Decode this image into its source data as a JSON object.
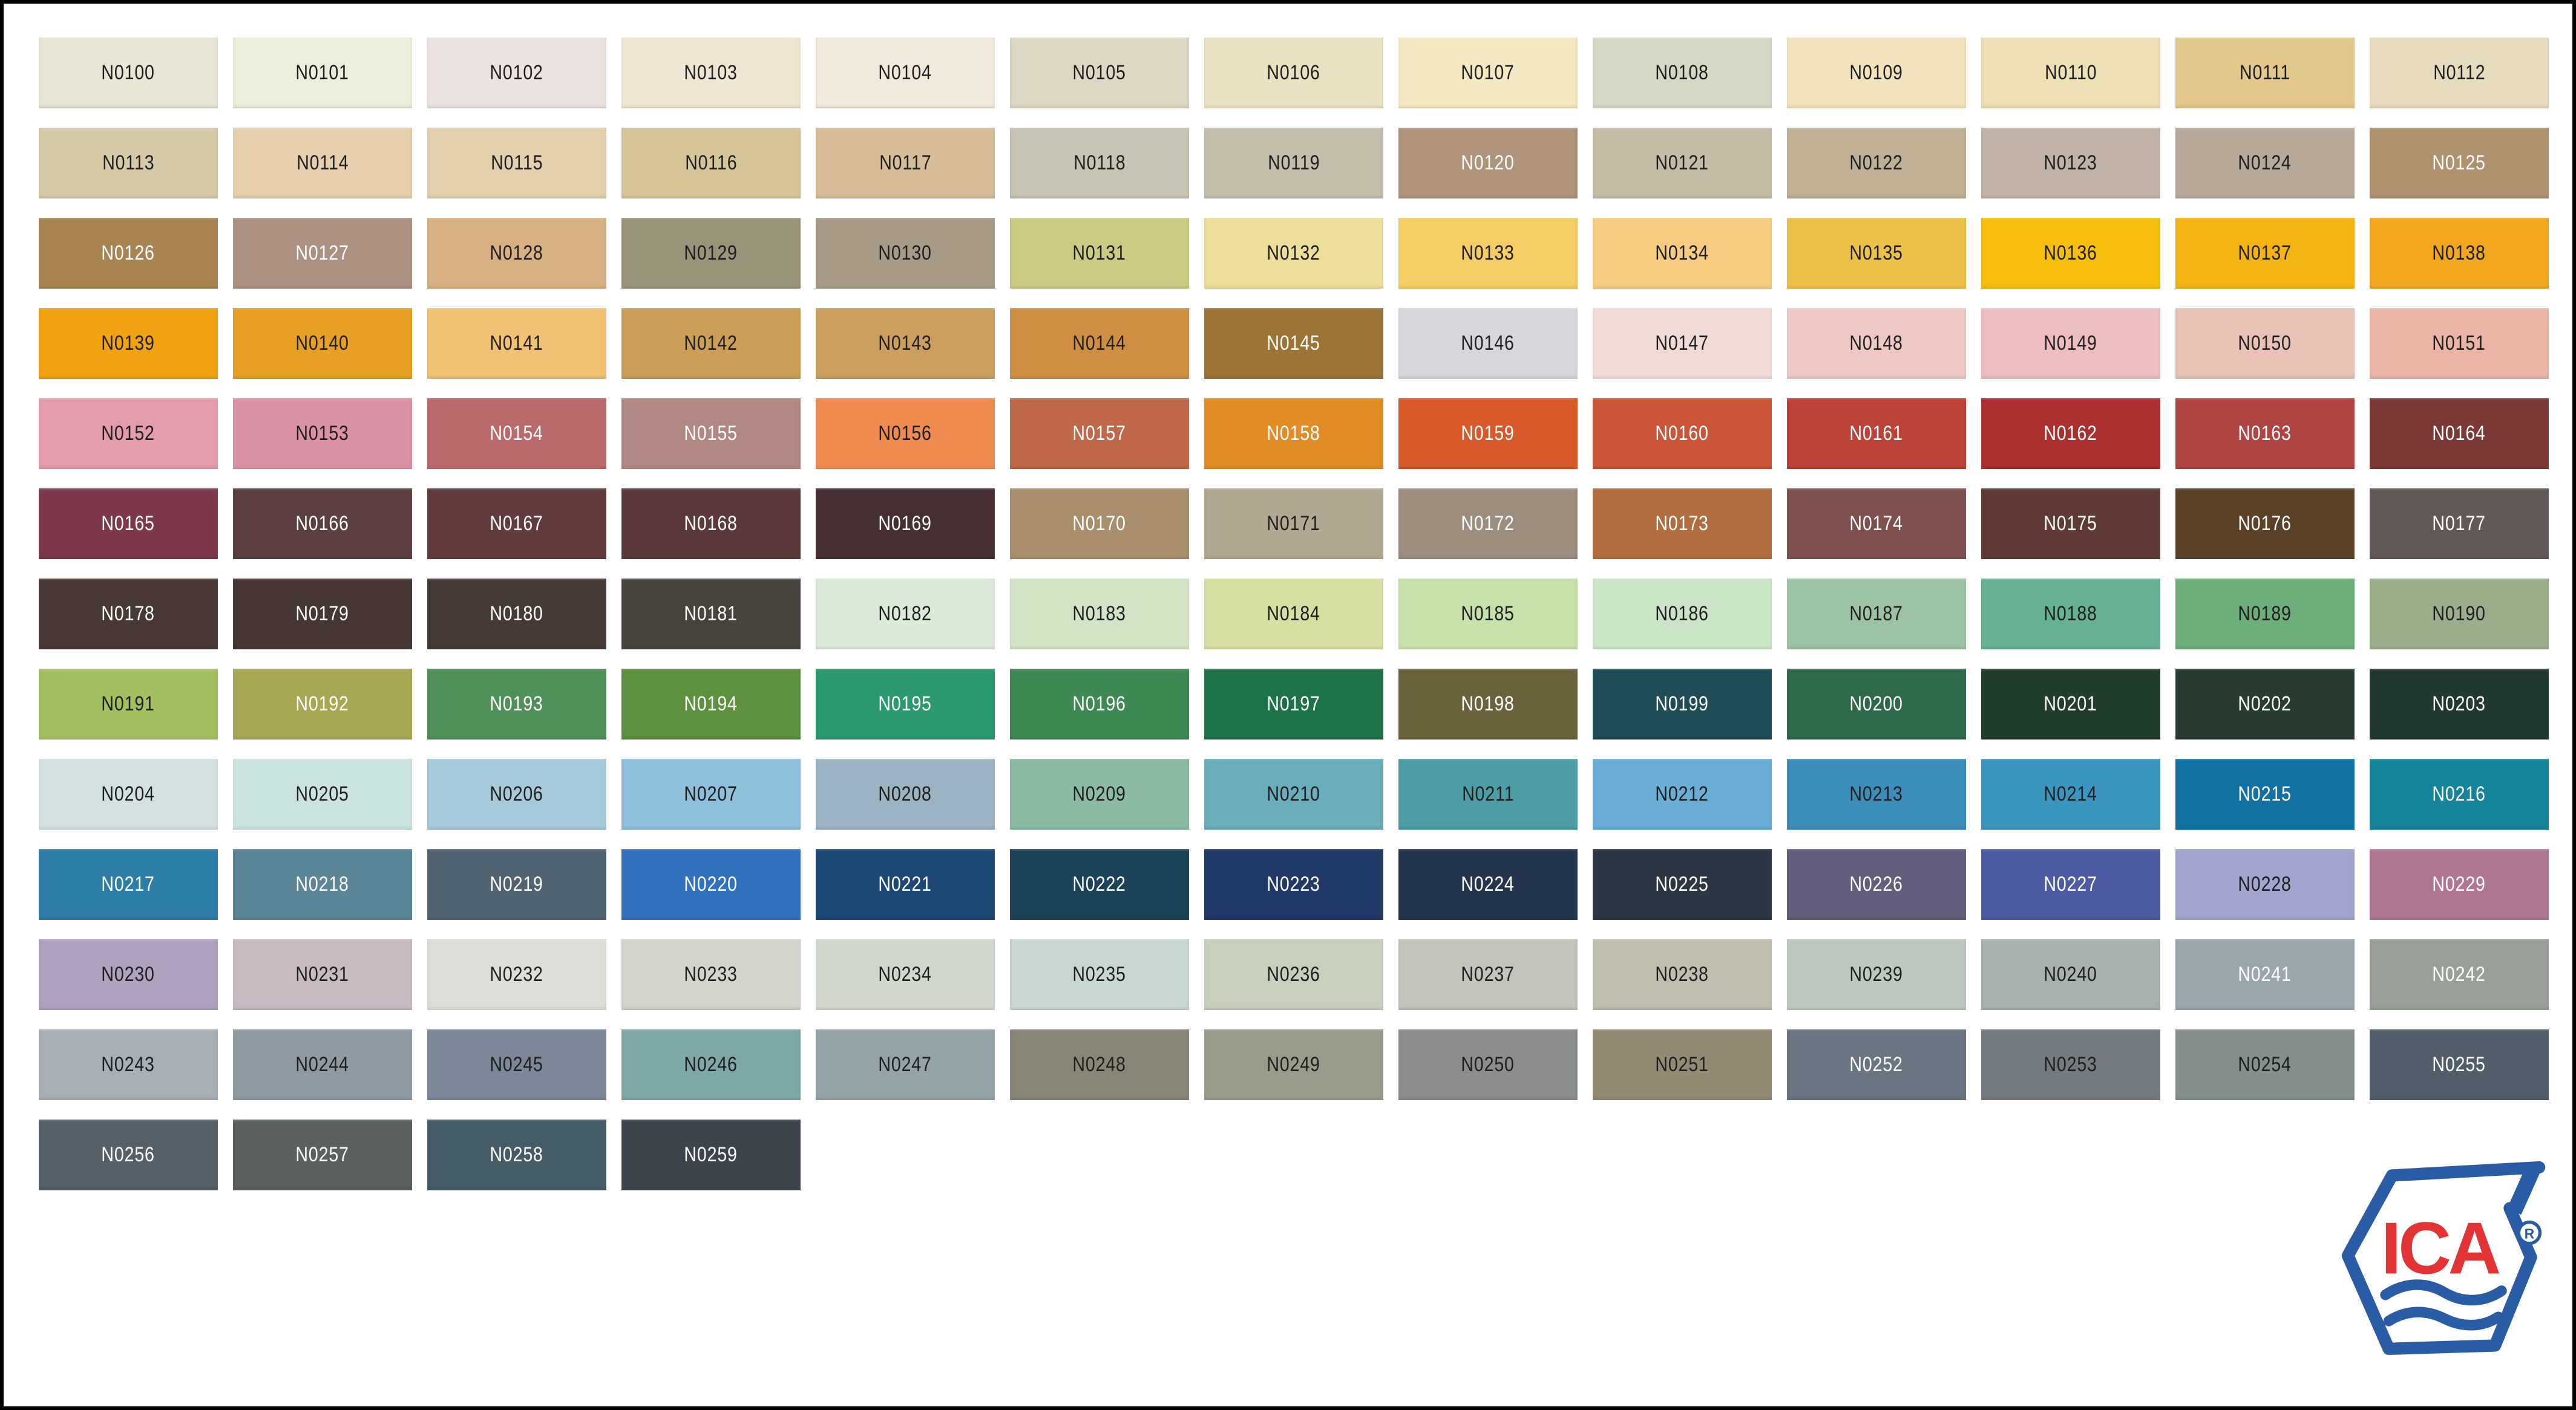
{
  "page": {
    "background": "#FFFFFF",
    "border_color": "#000000"
  },
  "logo": {
    "text": "ICA",
    "registered": "R",
    "blue": "#2A5BA5",
    "red": "#E23335"
  },
  "swatches": [
    {
      "code": "N0100",
      "color": "#E9E6D6",
      "text": "dark"
    },
    {
      "code": "N0101",
      "color": "#ECEDDA",
      "text": "dark"
    },
    {
      "code": "N0102",
      "color": "#ECE3E1",
      "text": "dark"
    },
    {
      "code": "N0103",
      "color": "#EFE7D3",
      "text": "dark"
    },
    {
      "code": "N0104",
      "color": "#F0E9DC",
      "text": "dark"
    },
    {
      "code": "N0105",
      "color": "#DED7C3",
      "text": "dark"
    },
    {
      "code": "N0106",
      "color": "#EAE1C0",
      "text": "dark"
    },
    {
      "code": "N0107",
      "color": "#F4E9C2",
      "text": "dark"
    },
    {
      "code": "N0108",
      "color": "#D6D8C5",
      "text": "dark"
    },
    {
      "code": "N0109",
      "color": "#F2E3BC",
      "text": "dark"
    },
    {
      "code": "N0110",
      "color": "#EDE0B5",
      "text": "dark"
    },
    {
      "code": "N0111",
      "color": "#E3C88E",
      "text": "dark"
    },
    {
      "code": "N0112",
      "color": "#E6DCBD",
      "text": "dark"
    },
    {
      "code": "N0113",
      "color": "#D7CAA7",
      "text": "dark"
    },
    {
      "code": "N0114",
      "color": "#E7CFAD",
      "text": "dark"
    },
    {
      "code": "N0115",
      "color": "#E2D0AD",
      "text": "dark"
    },
    {
      "code": "N0116",
      "color": "#D5C599",
      "text": "dark"
    },
    {
      "code": "N0117",
      "color": "#D7BD97",
      "text": "dark"
    },
    {
      "code": "N0118",
      "color": "#C7C4B3",
      "text": "dark"
    },
    {
      "code": "N0119",
      "color": "#C3BEAB",
      "text": "dark"
    },
    {
      "code": "N0120",
      "color": "#AF947A",
      "text": "light"
    },
    {
      "code": "N0121",
      "color": "#C5BCA5",
      "text": "dark"
    },
    {
      "code": "N0122",
      "color": "#BFB095",
      "text": "dark"
    },
    {
      "code": "N0123",
      "color": "#C1B2A7",
      "text": "dark"
    },
    {
      "code": "N0124",
      "color": "#B7AA9A",
      "text": "dark"
    },
    {
      "code": "N0125",
      "color": "#B0916E",
      "text": "light"
    },
    {
      "code": "N0126",
      "color": "#A98452",
      "text": "light"
    },
    {
      "code": "N0127",
      "color": "#AC9182",
      "text": "light"
    },
    {
      "code": "N0128",
      "color": "#D7B083",
      "text": "dark"
    },
    {
      "code": "N0129",
      "color": "#999379",
      "text": "dark"
    },
    {
      "code": "N0130",
      "color": "#A79B87",
      "text": "dark"
    },
    {
      "code": "N0131",
      "color": "#CBCB83",
      "text": "dark"
    },
    {
      "code": "N0132",
      "color": "#EDDE99",
      "text": "dark"
    },
    {
      "code": "N0133",
      "color": "#F4CD65",
      "text": "dark"
    },
    {
      "code": "N0134",
      "color": "#F5CC82",
      "text": "dark"
    },
    {
      "code": "N0135",
      "color": "#ECC149",
      "text": "dark"
    },
    {
      "code": "N0136",
      "color": "#F6BE0D",
      "text": "dark"
    },
    {
      "code": "N0137",
      "color": "#F4B412",
      "text": "dark"
    },
    {
      "code": "N0138",
      "color": "#F1A720",
      "text": "dark"
    },
    {
      "code": "N0139",
      "color": "#F1A312",
      "text": "dark"
    },
    {
      "code": "N0140",
      "color": "#E7A024",
      "text": "dark"
    },
    {
      "code": "N0141",
      "color": "#F1C174",
      "text": "dark"
    },
    {
      "code": "N0142",
      "color": "#CB9F58",
      "text": "dark"
    },
    {
      "code": "N0143",
      "color": "#CB9F5D",
      "text": "dark"
    },
    {
      "code": "N0144",
      "color": "#D08E43",
      "text": "dark"
    },
    {
      "code": "N0145",
      "color": "#9B7335",
      "text": "light"
    },
    {
      "code": "N0146",
      "color": "#D8D5DB",
      "text": "dark"
    },
    {
      "code": "N0147",
      "color": "#F1DBD7",
      "text": "dark"
    },
    {
      "code": "N0148",
      "color": "#EEC8C4",
      "text": "dark"
    },
    {
      "code": "N0149",
      "color": "#ECBEBF",
      "text": "dark"
    },
    {
      "code": "N0150",
      "color": "#E8C1B7",
      "text": "dark"
    },
    {
      "code": "N0151",
      "color": "#EAB5A4",
      "text": "dark"
    },
    {
      "code": "N0152",
      "color": "#E29CAB",
      "text": "dark"
    },
    {
      "code": "N0153",
      "color": "#DC92A5",
      "text": "dark"
    },
    {
      "code": "N0154",
      "color": "#BB696B",
      "text": "light"
    },
    {
      "code": "N0155",
      "color": "#B18783",
      "text": "light"
    },
    {
      "code": "N0156",
      "color": "#EF8A51",
      "text": "dark"
    },
    {
      "code": "N0157",
      "color": "#BF694A",
      "text": "light"
    },
    {
      "code": "N0158",
      "color": "#E18C27",
      "text": "light"
    },
    {
      "code": "N0159",
      "color": "#D85A2A",
      "text": "light"
    },
    {
      "code": "N0160",
      "color": "#CB5538",
      "text": "light"
    },
    {
      "code": "N0161",
      "color": "#BD4238",
      "text": "light"
    },
    {
      "code": "N0162",
      "color": "#AC2F2F",
      "text": "light"
    },
    {
      "code": "N0163",
      "color": "#AF4442",
      "text": "light"
    },
    {
      "code": "N0164",
      "color": "#7B3937",
      "text": "light"
    },
    {
      "code": "N0165",
      "color": "#7D394B",
      "text": "light"
    },
    {
      "code": "N0166",
      "color": "#5C3F3F",
      "text": "light"
    },
    {
      "code": "N0167",
      "color": "#623B3D",
      "text": "light"
    },
    {
      "code": "N0168",
      "color": "#5B393B",
      "text": "light"
    },
    {
      "code": "N0169",
      "color": "#452F33",
      "text": "light"
    },
    {
      "code": "N0170",
      "color": "#A88E6A",
      "text": "light"
    },
    {
      "code": "N0171",
      "color": "#B2A791",
      "text": "dark"
    },
    {
      "code": "N0172",
      "color": "#9B8E7F",
      "text": "light"
    },
    {
      "code": "N0173",
      "color": "#B16D3D",
      "text": "light"
    },
    {
      "code": "N0174",
      "color": "#80504F",
      "text": "light"
    },
    {
      "code": "N0175",
      "color": "#603A34",
      "text": "light"
    },
    {
      "code": "N0176",
      "color": "#5B4227",
      "text": "light"
    },
    {
      "code": "N0177",
      "color": "#625956",
      "text": "light"
    },
    {
      "code": "N0178",
      "color": "#493935",
      "text": "light"
    },
    {
      "code": "N0179",
      "color": "#473734",
      "text": "light"
    },
    {
      "code": "N0180",
      "color": "#463A37",
      "text": "light"
    },
    {
      "code": "N0181",
      "color": "#49433E",
      "text": "light"
    },
    {
      "code": "N0182",
      "color": "#DBEAD9",
      "text": "dark"
    },
    {
      "code": "N0183",
      "color": "#D3E3C6",
      "text": "dark"
    },
    {
      "code": "N0184",
      "color": "#D7DEA2",
      "text": "dark"
    },
    {
      "code": "N0185",
      "color": "#C7E1AB",
      "text": "dark"
    },
    {
      "code": "N0186",
      "color": "#CBE4C8",
      "text": "dark"
    },
    {
      "code": "N0187",
      "color": "#9BC3A3",
      "text": "dark"
    },
    {
      "code": "N0188",
      "color": "#67B193",
      "text": "dark"
    },
    {
      "code": "N0189",
      "color": "#6DAD79",
      "text": "dark"
    },
    {
      "code": "N0190",
      "color": "#9BAD8B",
      "text": "dark"
    },
    {
      "code": "N0191",
      "color": "#A3C060",
      "text": "dark"
    },
    {
      "code": "N0192",
      "color": "#A7A754",
      "text": "light"
    },
    {
      "code": "N0193",
      "color": "#4E9058",
      "text": "light"
    },
    {
      "code": "N0194",
      "color": "#5D903F",
      "text": "light"
    },
    {
      "code": "N0195",
      "color": "#2A996F",
      "text": "light"
    },
    {
      "code": "N0196",
      "color": "#3E8954",
      "text": "light"
    },
    {
      "code": "N0197",
      "color": "#1C7347",
      "text": "light"
    },
    {
      "code": "N0198",
      "color": "#6A623A",
      "text": "light"
    },
    {
      "code": "N0199",
      "color": "#1E4D58",
      "text": "light"
    },
    {
      "code": "N0200",
      "color": "#2E6A4A",
      "text": "light"
    },
    {
      "code": "N0201",
      "color": "#233D2D",
      "text": "light"
    },
    {
      "code": "N0202",
      "color": "#293C32",
      "text": "light"
    },
    {
      "code": "N0203",
      "color": "#22392F",
      "text": "light"
    },
    {
      "code": "N0204",
      "color": "#D3E1E1",
      "text": "dark"
    },
    {
      "code": "N0205",
      "color": "#CBE3DF",
      "text": "dark"
    },
    {
      "code": "N0206",
      "color": "#A7CADB",
      "text": "dark"
    },
    {
      "code": "N0207",
      "color": "#8EBFDB",
      "text": "dark"
    },
    {
      "code": "N0208",
      "color": "#9BB3C3",
      "text": "dark"
    },
    {
      "code": "N0209",
      "color": "#8BBBA3",
      "text": "dark"
    },
    {
      "code": "N0210",
      "color": "#6AADBB",
      "text": "dark"
    },
    {
      "code": "N0211",
      "color": "#4D9DA7",
      "text": "dark"
    },
    {
      "code": "N0212",
      "color": "#6AADD5",
      "text": "dark"
    },
    {
      "code": "N0213",
      "color": "#3D8DBB",
      "text": "dark"
    },
    {
      "code": "N0214",
      "color": "#3C95BF",
      "text": "dark"
    },
    {
      "code": "N0215",
      "color": "#1171A3",
      "text": "light"
    },
    {
      "code": "N0216",
      "color": "#16849A",
      "text": "light"
    },
    {
      "code": "N0217",
      "color": "#2D7EA7",
      "text": "light"
    },
    {
      "code": "N0218",
      "color": "#5A8697",
      "text": "light"
    },
    {
      "code": "N0219",
      "color": "#516371",
      "text": "light"
    },
    {
      "code": "N0220",
      "color": "#3171BD",
      "text": "light"
    },
    {
      "code": "N0221",
      "color": "#1B4874",
      "text": "light"
    },
    {
      "code": "N0222",
      "color": "#1B4357",
      "text": "light"
    },
    {
      "code": "N0223",
      "color": "#213967",
      "text": "light"
    },
    {
      "code": "N0224",
      "color": "#25354E",
      "text": "light"
    },
    {
      "code": "N0225",
      "color": "#2C3743",
      "text": "light"
    },
    {
      "code": "N0226",
      "color": "#645D7C",
      "text": "light"
    },
    {
      "code": "N0227",
      "color": "#4E5AA1",
      "text": "light"
    },
    {
      "code": "N0228",
      "color": "#A2A5CE",
      "text": "dark"
    },
    {
      "code": "N0229",
      "color": "#B07794",
      "text": "light"
    },
    {
      "code": "N0230",
      "color": "#AEA2BF",
      "text": "dark"
    },
    {
      "code": "N0231",
      "color": "#C8BAC1",
      "text": "dark"
    },
    {
      "code": "N0232",
      "color": "#DBDFD7",
      "text": "dark"
    },
    {
      "code": "N0233",
      "color": "#D3D4CB",
      "text": "dark"
    },
    {
      "code": "N0234",
      "color": "#D2D7CD",
      "text": "dark"
    },
    {
      "code": "N0235",
      "color": "#C9D7D3",
      "text": "dark"
    },
    {
      "code": "N0236",
      "color": "#C7CFBD",
      "text": "dark"
    },
    {
      "code": "N0237",
      "color": "#C3C4BB",
      "text": "dark"
    },
    {
      "code": "N0238",
      "color": "#C0BEAF",
      "text": "dark"
    },
    {
      "code": "N0239",
      "color": "#BDC9BF",
      "text": "dark"
    },
    {
      "code": "N0240",
      "color": "#A8B1AF",
      "text": "dark"
    },
    {
      "code": "N0241",
      "color": "#9AA7AD",
      "text": "light"
    },
    {
      "code": "N0242",
      "color": "#98A097",
      "text": "light"
    },
    {
      "code": "N0243",
      "color": "#A7AFB7",
      "text": "dark"
    },
    {
      "code": "N0244",
      "color": "#8E99A1",
      "text": "dark"
    },
    {
      "code": "N0245",
      "color": "#7C8798",
      "text": "dark"
    },
    {
      "code": "N0246",
      "color": "#7EA7A7",
      "text": "dark"
    },
    {
      "code": "N0247",
      "color": "#93A3A7",
      "text": "dark"
    },
    {
      "code": "N0248",
      "color": "#898577",
      "text": "dark"
    },
    {
      "code": "N0249",
      "color": "#9A9B8B",
      "text": "dark"
    },
    {
      "code": "N0250",
      "color": "#8B8E8B",
      "text": "dark"
    },
    {
      "code": "N0251",
      "color": "#938A73",
      "text": "dark"
    },
    {
      "code": "N0252",
      "color": "#697581",
      "text": "light"
    },
    {
      "code": "N0253",
      "color": "#747B80",
      "text": "dark"
    },
    {
      "code": "N0254",
      "color": "#849089",
      "text": "dark"
    },
    {
      "code": "N0255",
      "color": "#515D69",
      "text": "light"
    },
    {
      "code": "N0256",
      "color": "#566069",
      "text": "light"
    },
    {
      "code": "N0257",
      "color": "#5A615F",
      "text": "light"
    },
    {
      "code": "N0258",
      "color": "#455B65",
      "text": "light"
    },
    {
      "code": "N0259",
      "color": "#3D444B",
      "text": "light"
    }
  ]
}
